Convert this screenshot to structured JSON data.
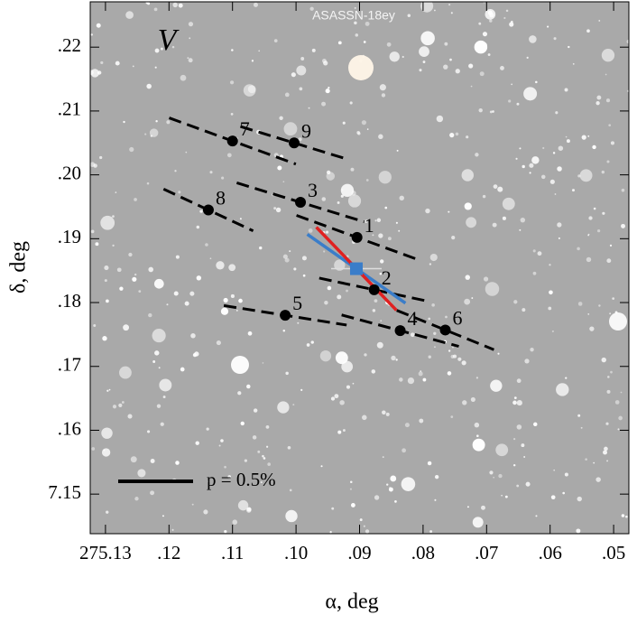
{
  "chart_data": {
    "type": "scatter",
    "title": "ASASSN-18ey",
    "band": "V",
    "xlabel": "α, deg",
    "ylabel": "δ, deg",
    "xlim": [
      275.1324,
      275.0476
    ],
    "ylim": [
      7.1438,
      7.2271
    ],
    "xticks": [
      275.13,
      {
        "value": 275.12,
        "label": ".12"
      },
      {
        "value": 275.11,
        "label": ".11"
      },
      {
        "value": 275.1,
        "label": ".10"
      },
      {
        "value": 275.09,
        "label": ".09"
      },
      {
        "value": 275.08,
        "label": ".08"
      },
      {
        "value": 275.07,
        "label": ".07"
      },
      {
        "value": 275.06,
        "label": ".06"
      },
      {
        "value": 275.05,
        "label": ".05"
      }
    ],
    "yticks": [
      7.15,
      {
        "value": 7.16,
        "label": ".16"
      },
      {
        "value": 7.17,
        "label": ".17"
      },
      {
        "value": 7.18,
        "label": ".18"
      },
      {
        "value": 7.19,
        "label": ".19"
      },
      {
        "value": 7.2,
        "label": ".20"
      },
      {
        "value": 7.21,
        "label": ".21"
      },
      {
        "value": 7.22,
        "label": ".22"
      }
    ],
    "stars": {
      "labels": [
        "1",
        "2",
        "3",
        "4",
        "5",
        "6",
        "7",
        "8",
        "9"
      ],
      "x": [
        275.0904,
        275.0877,
        275.0993,
        275.0836,
        275.1017,
        275.0765,
        275.11,
        275.1138,
        275.1003
      ],
      "y": [
        7.1902,
        7.182,
        7.1957,
        7.1756,
        7.178,
        7.1757,
        7.2053,
        7.1945,
        7.205
      ],
      "p": [
        0.86,
        0.75,
        0.89,
        0.81,
        0.83,
        0.7,
        0.9,
        0.66,
        0.75
      ],
      "pa": [
        70,
        78,
        73,
        75,
        81,
        68,
        70,
        65,
        73
      ]
    },
    "mean": {
      "x": 275.0905,
      "y": 7.1853,
      "color": "#3a7dc9",
      "lines": [
        {
          "color": "#3a7dc9",
          "p": 0.8,
          "pa": 55
        },
        {
          "color": "#e02020",
          "p": 0.77,
          "pa": 44
        }
      ]
    },
    "scale_bar": {
      "p": 0.5,
      "label": "p = 0.5%"
    }
  }
}
